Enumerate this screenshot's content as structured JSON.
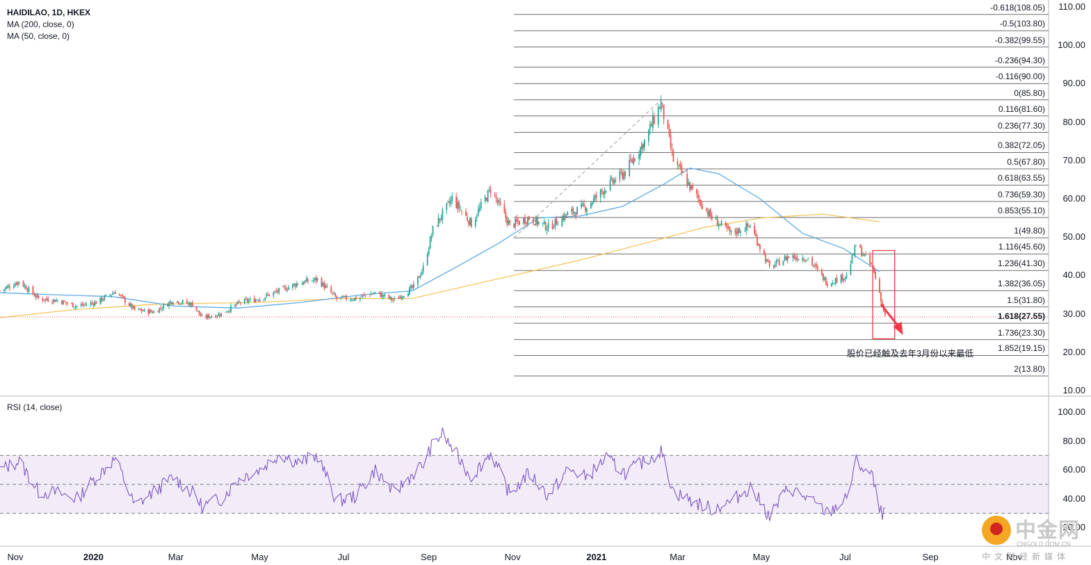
{
  "header": {
    "symbol_line": "HAIDILAO, 1D, HKEX",
    "ma200_line": "MA (200, close, 0)",
    "ma50_line": "MA (50, close, 0)"
  },
  "rsi": {
    "title": "RSI (14, close)",
    "upper_band": 70,
    "lower_band": 30,
    "mid_line": 50,
    "color": "#7e57c2",
    "band_fill": "#ede7f6"
  },
  "annotation": {
    "note": "股价已经触及去年3月份以来最低",
    "box_color": "#f23645",
    "arrow_color": "#f23645"
  },
  "watermark": {
    "name": "中金网",
    "url": "CNGOLD.COM.CN",
    "subtitle": "中文财经新媒体"
  },
  "colors": {
    "up_candle": "#26a69a",
    "down_candle": "#ef5350",
    "ma50": "#5aa9e6",
    "ma200": "#f5c45b",
    "fib_line": "#6b6b6b",
    "last_price_line": "#ef5350"
  },
  "chart_data": [
    {
      "type": "candlestick",
      "name": "price",
      "title": "HAIDILAO, 1D, HKEX",
      "y_ticks": [
        "110.00",
        "100.00",
        "90.00",
        "80.00",
        "70.00",
        "60.00",
        "50.00",
        "40.00",
        "30.00",
        "20.00",
        "10.00"
      ],
      "ylim": [
        10,
        110
      ],
      "x_ticks": [
        {
          "label": "Nov",
          "date": "2019-11-01",
          "bold": false
        },
        {
          "label": "2020",
          "date": "2020-01-01",
          "bold": true
        },
        {
          "label": "Mar",
          "date": "2020-03-01",
          "bold": false
        },
        {
          "label": "May",
          "date": "2020-05-01",
          "bold": false
        },
        {
          "label": "Jul",
          "date": "2020-07-01",
          "bold": false
        },
        {
          "label": "Sep",
          "date": "2020-09-01",
          "bold": false
        },
        {
          "label": "Nov",
          "date": "2020-11-01",
          "bold": false
        },
        {
          "label": "2021",
          "date": "2021-01-01",
          "bold": true
        },
        {
          "label": "Mar",
          "date": "2021-03-01",
          "bold": false
        },
        {
          "label": "May",
          "date": "2021-05-01",
          "bold": false
        },
        {
          "label": "Jul",
          "date": "2021-07-01",
          "bold": false
        },
        {
          "label": "Sep",
          "date": "2021-09-01",
          "bold": false
        },
        {
          "label": "Nov",
          "date": "2021-11-01",
          "bold": false
        }
      ],
      "price_path": [
        [
          "2019-10-25",
          36.0
        ],
        [
          "2019-11-08",
          38.5
        ],
        [
          "2019-11-22",
          34.0
        ],
        [
          "2019-12-06",
          33.5
        ],
        [
          "2019-12-20",
          32.0
        ],
        [
          "2020-01-03",
          33.0
        ],
        [
          "2020-01-17",
          35.8
        ],
        [
          "2020-01-31",
          31.0
        ],
        [
          "2020-02-14",
          30.5
        ],
        [
          "2020-02-28",
          33.5
        ],
        [
          "2020-03-13",
          32.5
        ],
        [
          "2020-03-20",
          29.0
        ],
        [
          "2020-04-03",
          30.0
        ],
        [
          "2020-04-17",
          33.0
        ],
        [
          "2020-05-01",
          34.0
        ],
        [
          "2020-05-15",
          36.0
        ],
        [
          "2020-05-29",
          38.0
        ],
        [
          "2020-06-12",
          39.0
        ],
        [
          "2020-06-26",
          34.0
        ],
        [
          "2020-07-10",
          34.0
        ],
        [
          "2020-07-24",
          35.5
        ],
        [
          "2020-08-07",
          33.5
        ],
        [
          "2020-08-21",
          37.0
        ],
        [
          "2020-08-28",
          42.0
        ],
        [
          "2020-09-04",
          52.0
        ],
        [
          "2020-09-18",
          60.0
        ],
        [
          "2020-10-02",
          53.5
        ],
        [
          "2020-10-16",
          62.5
        ],
        [
          "2020-10-30",
          53.0
        ],
        [
          "2020-11-13",
          55.0
        ],
        [
          "2020-11-27",
          52.5
        ],
        [
          "2020-12-11",
          56.0
        ],
        [
          "2020-12-25",
          58.0
        ],
        [
          "2021-01-08",
          63.0
        ],
        [
          "2021-01-22",
          67.0
        ],
        [
          "2021-02-05",
          75.0
        ],
        [
          "2021-02-17",
          85.0
        ],
        [
          "2021-02-26",
          70.0
        ],
        [
          "2021-03-12",
          62.0
        ],
        [
          "2021-03-26",
          55.0
        ],
        [
          "2021-04-09",
          51.0
        ],
        [
          "2021-04-23",
          53.0
        ],
        [
          "2021-05-07",
          42.0
        ],
        [
          "2021-05-21",
          45.0
        ],
        [
          "2021-06-04",
          44.5
        ],
        [
          "2021-06-18",
          38.0
        ],
        [
          "2021-07-02",
          40.0
        ],
        [
          "2021-07-09",
          48.0
        ],
        [
          "2021-07-21",
          42.0
        ],
        [
          "2021-07-26",
          35.5
        ],
        [
          "2021-07-30",
          29.2
        ]
      ],
      "last_price": 29.2,
      "ma50_path": [
        [
          "2019-10-25",
          35.5
        ],
        [
          "2019-12-01",
          35.0
        ],
        [
          "2020-01-15",
          34.5
        ],
        [
          "2020-03-01",
          32.0
        ],
        [
          "2020-04-15",
          31.5
        ],
        [
          "2020-06-01",
          33.0
        ],
        [
          "2020-07-15",
          35.0
        ],
        [
          "2020-08-20",
          36.0
        ],
        [
          "2020-09-20",
          42.0
        ],
        [
          "2020-10-20",
          48.0
        ],
        [
          "2020-11-20",
          55.0
        ],
        [
          "2020-12-20",
          55.5
        ],
        [
          "2021-01-20",
          58.0
        ],
        [
          "2021-02-20",
          64.0
        ],
        [
          "2021-03-10",
          68.0
        ],
        [
          "2021-03-31",
          66.5
        ],
        [
          "2021-04-30",
          60.0
        ],
        [
          "2021-05-31",
          51.0
        ],
        [
          "2021-06-30",
          47.0
        ],
        [
          "2021-07-26",
          41.0
        ]
      ],
      "ma200_path": [
        [
          "2019-10-25",
          29.0
        ],
        [
          "2019-12-15",
          31.0
        ],
        [
          "2020-02-15",
          32.5
        ],
        [
          "2020-05-01",
          33.0
        ],
        [
          "2020-07-01",
          34.0
        ],
        [
          "2020-08-20",
          34.0
        ],
        [
          "2020-10-20",
          39.0
        ],
        [
          "2020-12-20",
          44.0
        ],
        [
          "2021-02-01",
          48.0
        ],
        [
          "2021-03-20",
          52.5
        ],
        [
          "2021-05-01",
          55.0
        ],
        [
          "2021-06-15",
          56.0
        ],
        [
          "2021-07-26",
          54.0
        ]
      ],
      "fibonacci": {
        "start_date": "2020-11-02",
        "levels": [
          {
            "label": "-0.618(108.05)",
            "price": 108.05,
            "bold": false
          },
          {
            "label": "-0.5(103.80)",
            "price": 103.8,
            "bold": false
          },
          {
            "label": "-0.382(99.55)",
            "price": 99.55,
            "bold": false
          },
          {
            "label": "-0.236(94.30)",
            "price": 94.3,
            "bold": false
          },
          {
            "label": "-0.116(90.00)",
            "price": 90.0,
            "bold": false
          },
          {
            "label": "0(85.80)",
            "price": 85.8,
            "bold": false
          },
          {
            "label": "0.116(81.60)",
            "price": 81.6,
            "bold": false
          },
          {
            "label": "0.236(77.30)",
            "price": 77.3,
            "bold": false
          },
          {
            "label": "0.382(72.05)",
            "price": 72.05,
            "bold": false
          },
          {
            "label": "0.5(67.80)",
            "price": 67.8,
            "bold": false
          },
          {
            "label": "0.618(63.55)",
            "price": 63.55,
            "bold": false
          },
          {
            "label": "0.736(59.30)",
            "price": 59.3,
            "bold": false
          },
          {
            "label": "0.853(55.10)",
            "price": 55.1,
            "bold": false
          },
          {
            "label": "1(49.80)",
            "price": 49.8,
            "bold": false
          },
          {
            "label": "1.116(45.60)",
            "price": 45.6,
            "bold": false
          },
          {
            "label": "1.236(41.30)",
            "price": 41.3,
            "bold": false
          },
          {
            "label": "1.382(36.05)",
            "price": 36.05,
            "bold": false
          },
          {
            "label": "1.5(31.80)",
            "price": 31.8,
            "bold": false
          },
          {
            "label": "1.618(27.55)",
            "price": 27.55,
            "bold": true
          },
          {
            "label": "1.736(23.30)",
            "price": 23.3,
            "bold": false
          },
          {
            "label": "1.852(19.15)",
            "price": 19.15,
            "bold": false
          },
          {
            "label": "2(13.80)",
            "price": 13.8,
            "bold": false
          }
        ],
        "trend_line": [
          [
            "2020-11-02",
            49.8
          ],
          [
            "2021-02-17",
            85.8
          ]
        ]
      },
      "highlight_box": {
        "from": "2021-07-21",
        "to": "2021-08-06",
        "top": 46.5,
        "bottom": 23.5
      },
      "arrow": [
        [
          "2021-07-27",
          32.5
        ],
        [
          "2021-08-12",
          24.5
        ]
      ]
    },
    {
      "type": "line",
      "name": "RSI",
      "title": "RSI (14, close)",
      "y_ticks": [
        "100.00",
        "80.00",
        "60.00",
        "40.00",
        "20.00"
      ],
      "ylim": [
        20,
        100
      ],
      "rsi_path": [
        [
          "2019-10-25",
          60
        ],
        [
          "2019-11-08",
          66
        ],
        [
          "2019-11-22",
          45
        ],
        [
          "2019-12-06",
          44
        ],
        [
          "2019-12-20",
          40
        ],
        [
          "2020-01-03",
          55
        ],
        [
          "2020-01-17",
          68
        ],
        [
          "2020-01-31",
          35
        ],
        [
          "2020-02-14",
          45
        ],
        [
          "2020-02-28",
          55
        ],
        [
          "2020-03-13",
          44
        ],
        [
          "2020-03-20",
          35
        ],
        [
          "2020-04-03",
          40
        ],
        [
          "2020-04-17",
          55
        ],
        [
          "2020-05-01",
          60
        ],
        [
          "2020-05-15",
          71
        ],
        [
          "2020-05-29",
          65
        ],
        [
          "2020-06-12",
          70
        ],
        [
          "2020-06-26",
          38
        ],
        [
          "2020-07-10",
          42
        ],
        [
          "2020-07-24",
          60
        ],
        [
          "2020-08-07",
          44
        ],
        [
          "2020-08-21",
          58
        ],
        [
          "2020-08-28",
          64
        ],
        [
          "2020-09-04",
          78
        ],
        [
          "2020-09-11",
          85
        ],
        [
          "2020-09-18",
          75
        ],
        [
          "2020-10-02",
          55
        ],
        [
          "2020-10-16",
          72
        ],
        [
          "2020-10-30",
          43
        ],
        [
          "2020-11-13",
          58
        ],
        [
          "2020-11-27",
          42
        ],
        [
          "2020-12-11",
          60
        ],
        [
          "2020-12-25",
          55
        ],
        [
          "2021-01-08",
          68
        ],
        [
          "2021-01-22",
          58
        ],
        [
          "2021-02-05",
          66
        ],
        [
          "2021-02-17",
          73
        ],
        [
          "2021-02-26",
          45
        ],
        [
          "2021-03-12",
          38
        ],
        [
          "2021-03-26",
          33
        ],
        [
          "2021-04-09",
          38
        ],
        [
          "2021-04-23",
          48
        ],
        [
          "2021-05-07",
          28
        ],
        [
          "2021-05-21",
          48
        ],
        [
          "2021-06-04",
          40
        ],
        [
          "2021-06-18",
          30
        ],
        [
          "2021-07-02",
          40
        ],
        [
          "2021-07-09",
          66
        ],
        [
          "2021-07-21",
          55
        ],
        [
          "2021-07-26",
          31
        ],
        [
          "2021-07-30",
          29
        ]
      ]
    }
  ]
}
